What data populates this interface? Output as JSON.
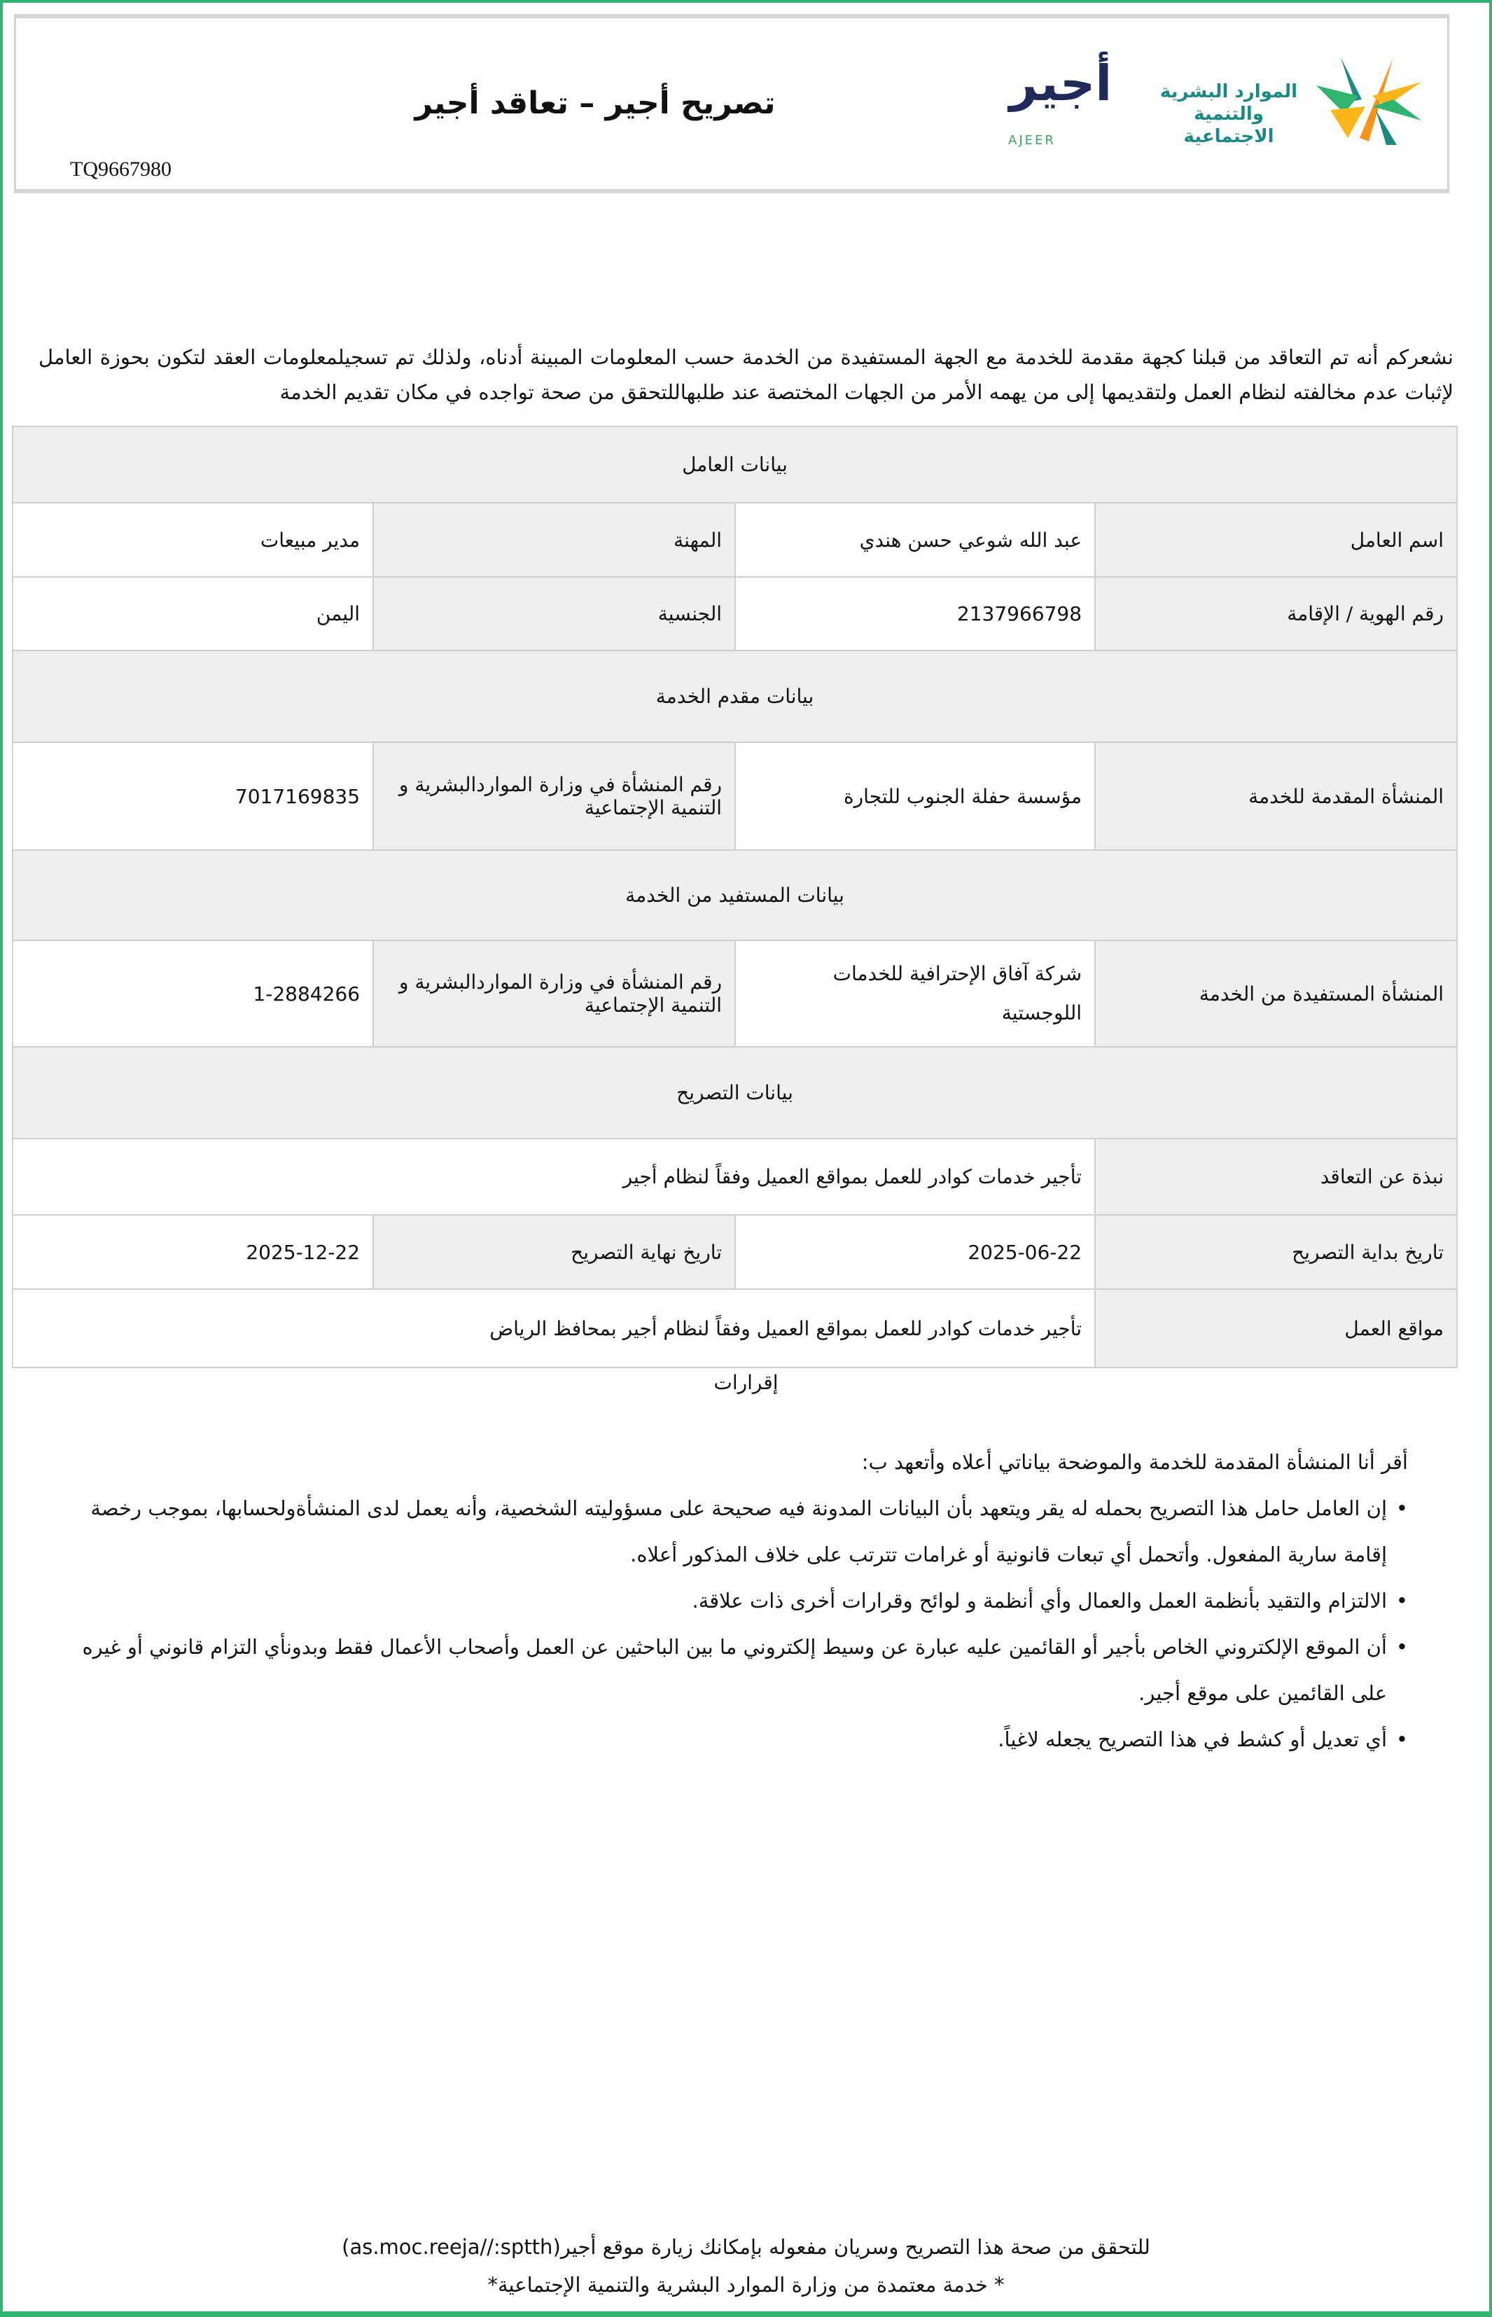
{
  "header": {
    "title": "تصريح أجير –  تعاقد أجير",
    "reference": "TQ9667980",
    "ministry_logo_text": "الموارد البشرية والتنمية الاجتماعية",
    "ajeer_logo_text": "أجير",
    "ajeer_logo_latin": "AJEER"
  },
  "intro": "نشعركم أنه تم التعاقد من قبلنا كجهة مقدمة للخدمة مع الجهة المستفيدة من الخدمة حسب المعلومات المبينة أدناه، ولذلك تم تسجيلمعلومات العقد لتكون بحوزة العامل لإثبات عدم مخالفته لنظام العمل ولتقديمها إلى من يهمه الأمر من الجهات المختصة عند طلبهاللتحقق من صحة تواجده في مكان تقديم الخدمة",
  "worker": {
    "section": "بيانات العامل",
    "name_label": "اسم العامل",
    "name": "عبد الله شوعي حسن هندي",
    "profession_label": "المهنة",
    "profession": "مدير مبيعات",
    "id_label": "رقم الهوية / الإقامة",
    "id": "2137966798",
    "nationality_label": "الجنسية",
    "nationality": "اليمن"
  },
  "provider": {
    "section": "بيانات مقدم الخدمة",
    "org_label": "المنشأة المقدمة للخدمة",
    "org": "مؤسسة حفلة الجنوب للتجارة",
    "num_label": "رقم المنشأة في وزارة المواردالبشرية و التنمية الإجتماعية",
    "num": "7017169835"
  },
  "beneficiary": {
    "section": "بيانات المستفيد من الخدمة",
    "org_label": "المنشأة المستفيدة من الخدمة",
    "org": "شركة آفاق الإحترافية للخدمات اللوجستية",
    "num_label": "رقم المنشأة في وزارة المواردالبشرية و التنمية الإجتماعية",
    "num": "1-2884266"
  },
  "permit": {
    "section": "بيانات التصريح",
    "summary_label": "نبذة عن التعاقد",
    "summary": "تأجير خدمات كوادر للعمل بمواقع العميل وفقاً لنظام أجير",
    "start_label": "تاريخ بداية التصريح",
    "start": "2025-06-22",
    "end_label": "تاريخ نهاية التصريح",
    "end": "2025-12-22",
    "locations_label": "مواقع العمل",
    "locations": "تأجير خدمات كوادر للعمل بمواقع العميل وفقاً لنظام أجير بمحافظ الرياض"
  },
  "declarations": {
    "title": "إقرارات",
    "lead": "أقر أنا المنشأة المقدمة للخدمة والموضحة بياناتي أعلاه وأتعهد ب:",
    "items": [
      "إن العامل حامل هذا التصريح بحمله له يقر ويتعهد بأن البيانات المدونة فيه صحيحة على مسؤوليته الشخصية، وأنه يعمل لدى المنشأةولحسابها، بموجب رخصة إقامة سارية المفعول. وأتحمل أي تبعات قانونية أو غرامات تترتب على خلاف المذكور أعلاه.",
      "الالتزام والتقيد بأنظمة العمل والعمال وأي أنظمة و لوائح وقرارات أخرى ذات علاقة.",
      "أن الموقع الإلكتروني الخاص بأجير أو القائمين عليه عبارة عن وسيط إلكتروني ما بين الباحثين عن العمل وأصحاب الأعمال فقط وبدونأي التزام قانوني أو غيره على القائمين على موقع أجير.",
      "أي تعديل أو كشط في هذا التصريح يجعله لاغياً."
    ]
  },
  "footer": {
    "verify": "للتحقق من صحة هذا التصريح وسريان مفعوله بإمكانك زيارة موقع أجير(as.moc.reeja//:sptth)",
    "approved": "* خدمة معتمدة من وزارة الموارد البشرية والتنمية الإجتماعية*"
  },
  "colors": {
    "frame": "#2eb46f",
    "ajeer_navy": "#1f2a5a",
    "ajeer_green": "#3aa564",
    "ministry_teal": "#1b8a84",
    "ministry_orange": "#f7941d"
  }
}
